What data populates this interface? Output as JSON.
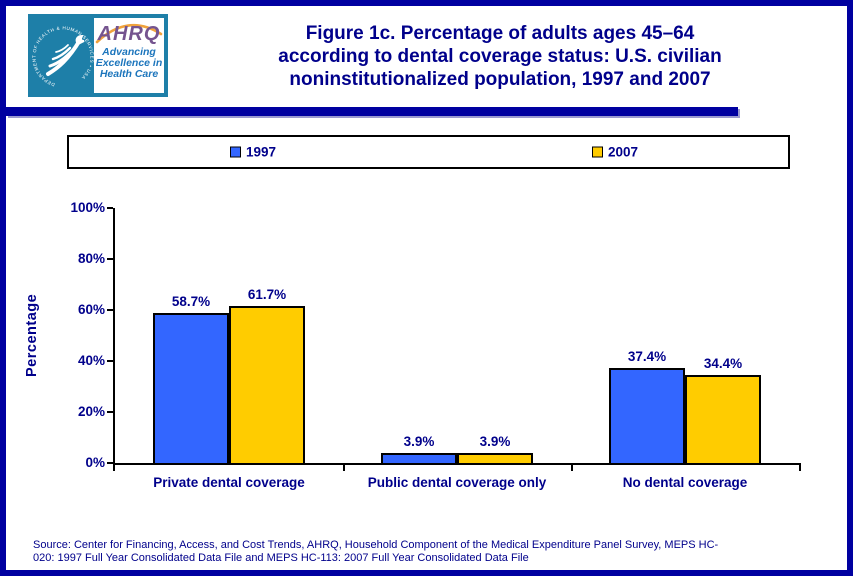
{
  "colors": {
    "navy_text": "#00008B",
    "navy_border": "#0000A0",
    "bar_blue": "#3366FF",
    "bar_yellow": "#FFCC00",
    "logo_teal": "#1E7FA8",
    "logo_purple": "#75548F",
    "logo_blue": "#1C75BC",
    "logo_orange": "#F0A23C"
  },
  "header": {
    "logo": {
      "seal_text": "DEPARTMENT OF HEALTH & HUMAN SERVICES • USA",
      "acronym": "AHRQ",
      "tagline_lines": [
        "Advancing",
        "Excellence in",
        "Health Care"
      ]
    },
    "title_lines": [
      "Figure 1c. Percentage of adults ages 45–64",
      "according to dental coverage status: U.S. civilian",
      "noninstitutionalized population, 1997 and 2007"
    ]
  },
  "chart_data": {
    "type": "bar",
    "title": "Figure 1c. Percentage of adults ages 45–64 according to dental coverage status: U.S. civilian noninstitutionalized population, 1997 and 2007",
    "categories": [
      "Private dental coverage",
      "Public dental coverage only",
      "No dental coverage"
    ],
    "series": [
      {
        "name": "1997",
        "color": "#3366FF",
        "values": [
          58.7,
          3.9,
          37.4
        ]
      },
      {
        "name": "2007",
        "color": "#FFCC00",
        "values": [
          61.7,
          3.9,
          34.4
        ]
      }
    ],
    "ylabel": "Percentage",
    "xlabel": "",
    "ylim": [
      0,
      100
    ],
    "ytick_step": 20,
    "ytick_labels": [
      "0%",
      "20%",
      "40%",
      "60%",
      "80%",
      "100%"
    ],
    "value_suffix": "%",
    "grid": false,
    "legend_position": "top"
  },
  "footer": {
    "source_lines": [
      "Source: Center for Financing, Access, and Cost Trends, AHRQ, Household Component of the Medical Expenditure Panel Survey, MEPS HC-",
      "020: 1997 Full Year Consolidated Data File and MEPS HC-113: 2007 Full Year Consolidated Data File"
    ]
  }
}
